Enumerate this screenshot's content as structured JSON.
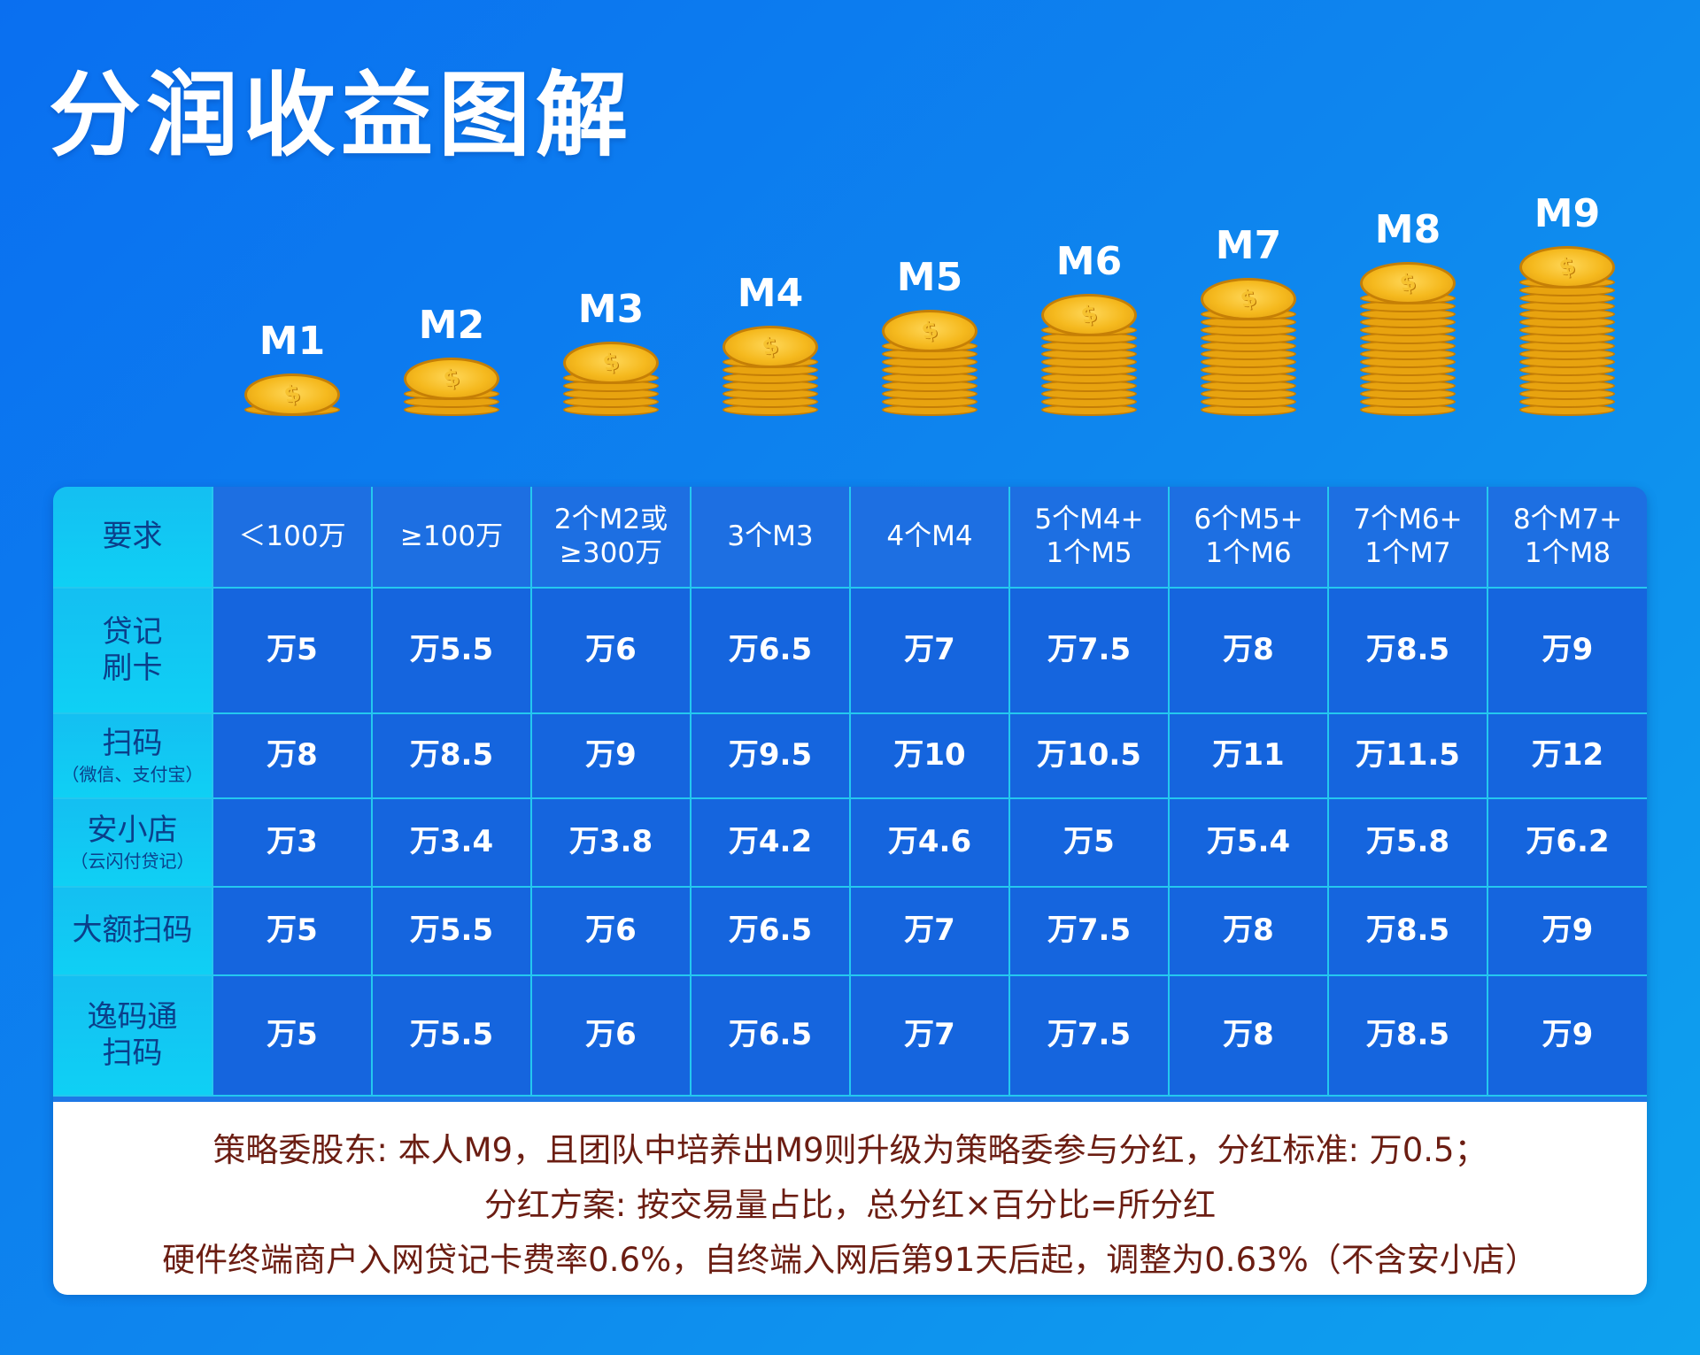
{
  "title": "分润收益图解",
  "levels": [
    "M1",
    "M2",
    "M3",
    "M4",
    "M5",
    "M6",
    "M7",
    "M8",
    "M9"
  ],
  "coin_symbol": "$",
  "coin_layers": [
    1,
    3,
    5,
    7,
    9,
    11,
    13,
    15,
    17
  ],
  "table": {
    "row_headers": [
      {
        "label": "要求",
        "sub": ""
      },
      {
        "label": "贷记\n刷卡",
        "sub": ""
      },
      {
        "label": "扫码",
        "sub": "（微信、支付宝）"
      },
      {
        "label": "安小店",
        "sub": "（云闪付贷记）"
      },
      {
        "label": "大额扫码",
        "sub": ""
      },
      {
        "label": "逸码通\n扫码",
        "sub": ""
      }
    ],
    "requirements": [
      "＜100万",
      "≥100万",
      "2个M2或\n≥300万",
      "3个M3",
      "4个M4",
      "5个M4+\n1个M5",
      "6个M5+\n1个M6",
      "7个M6+\n1个M7",
      "8个M7+\n1个M8"
    ],
    "rates": [
      [
        "万5",
        "万5.5",
        "万6",
        "万6.5",
        "万7",
        "万7.5",
        "万8",
        "万8.5",
        "万9"
      ],
      [
        "万8",
        "万8.5",
        "万9",
        "万9.5",
        "万10",
        "万10.5",
        "万11",
        "万11.5",
        "万12"
      ],
      [
        "万3",
        "万3.4",
        "万3.8",
        "万4.2",
        "万4.6",
        "万5",
        "万5.4",
        "万5.8",
        "万6.2"
      ],
      [
        "万5",
        "万5.5",
        "万6",
        "万6.5",
        "万7",
        "万7.5",
        "万8",
        "万8.5",
        "万9"
      ],
      [
        "万5",
        "万5.5",
        "万6",
        "万6.5",
        "万7",
        "万7.5",
        "万8",
        "万8.5",
        "万9"
      ]
    ]
  },
  "notes": [
    "策略委股东: 本人M9，且团队中培养出M9则升级为策略委参与分红，分红标准: 万0.5；",
    "分红方案: 按交易量占比，总分红×百分比=所分红",
    "硬件终端商户入网贷记卡费率0.6%，自终端入网后第91天后起，调整为0.63%（不含安小店）"
  ],
  "colors": {
    "background": "#0a6ff0",
    "header_cell": "#14bff2",
    "grid_line": "#24c8ef",
    "coin_gold": "#f5b91e",
    "note_text": "#6b1d12"
  }
}
